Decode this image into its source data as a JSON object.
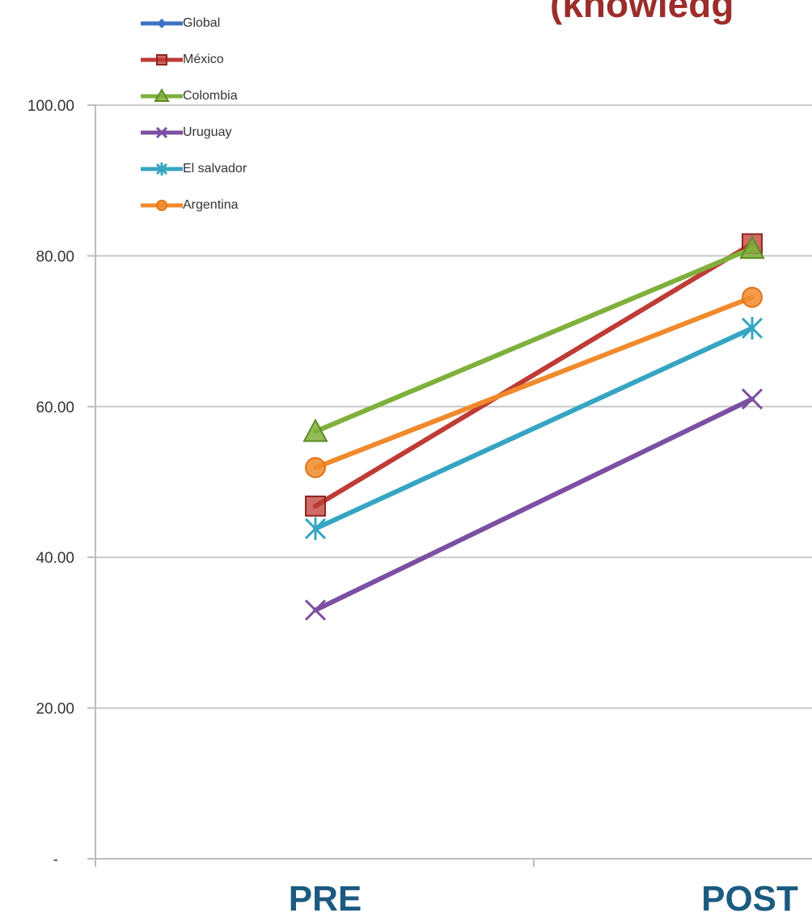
{
  "title_fragment": "(knowledg",
  "chart_data": {
    "type": "line",
    "title": "(knowledg",
    "xlabel": "",
    "ylabel": "",
    "categories": [
      "PRE",
      "POST"
    ],
    "ylim": [
      0,
      100
    ],
    "yticks": [
      "-",
      "20.00",
      "40.00",
      "60.00",
      "80.00",
      "100.00"
    ],
    "grid": true,
    "legend_position": "top-left",
    "series": [
      {
        "name": "Global",
        "color": "#3b73c2",
        "marker": "diamond",
        "values": [
          null,
          null
        ]
      },
      {
        "name": "México",
        "color": "#be3b36",
        "marker": "square",
        "values": [
          46.8,
          81.6
        ]
      },
      {
        "name": "Colombia",
        "color": "#7fb03b",
        "marker": "triangle",
        "values": [
          56.7,
          81.0
        ]
      },
      {
        "name": "Uruguay",
        "color": "#7b4fa2",
        "marker": "x",
        "values": [
          33.0,
          61.0
        ]
      },
      {
        "name": "El salvador",
        "color": "#36a5c2",
        "marker": "star",
        "values": [
          43.8,
          70.4
        ]
      },
      {
        "name": "Argentina",
        "color": "#f08a2c",
        "marker": "circle",
        "values": [
          51.9,
          74.5
        ]
      }
    ]
  }
}
